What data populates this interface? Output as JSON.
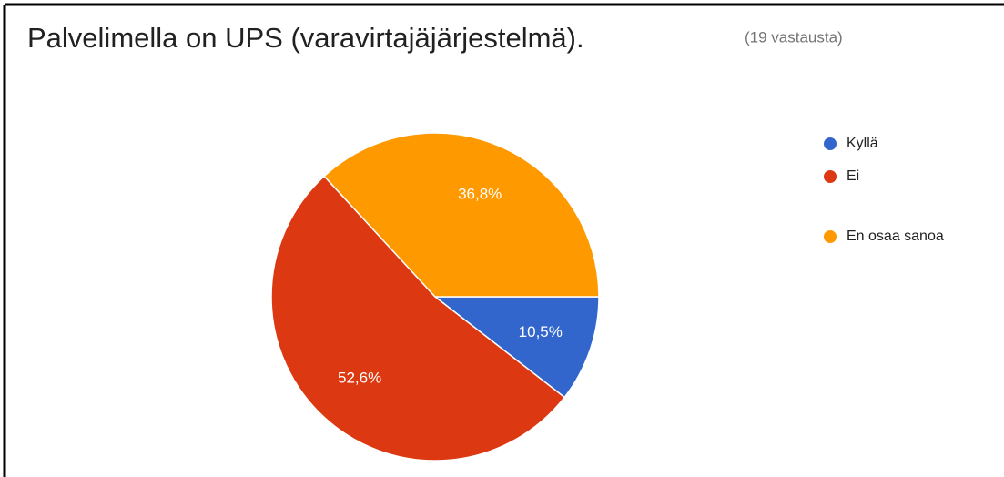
{
  "chart_data": {
    "type": "pie",
    "title": "Palvelimella on UPS (varavirtajäjärjestelmä).",
    "subtitle": "(19 vastausta)",
    "categories": [
      "Kyllä",
      "Ei",
      "En osaa sanoa"
    ],
    "values": [
      10.5,
      52.6,
      36.8
    ],
    "value_labels": [
      "10,5%",
      "52,6%",
      "36,8%"
    ],
    "colors": [
      "#3366cc",
      "#dc3912",
      "#ff9900"
    ],
    "legend": "right"
  }
}
